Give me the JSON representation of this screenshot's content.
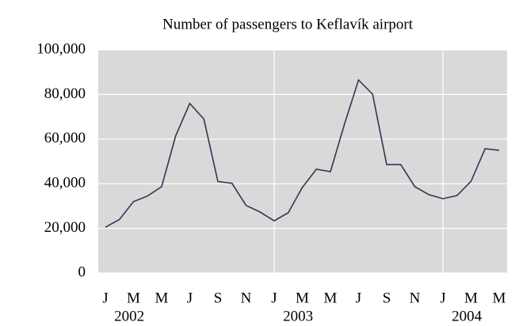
{
  "chart_data": {
    "type": "line",
    "title": "Number of passengers to Keflavík airport",
    "categories": [
      "J",
      null,
      "M",
      null,
      "M",
      null,
      "J",
      null,
      "S",
      null,
      "N",
      null,
      "J",
      null,
      "M",
      null,
      "M",
      null,
      "J",
      null,
      "S",
      null,
      "N",
      null,
      "J",
      null,
      "M",
      null,
      "M"
    ],
    "years": [
      "2002",
      "2003",
      "2004"
    ],
    "series": [
      {
        "color": "#2d3856",
        "values": [
          20500,
          24000,
          32000,
          34500,
          38700,
          61500,
          76000,
          69000,
          41000,
          40200,
          30300,
          27300,
          23400,
          27000,
          38300,
          46500,
          45400,
          66700,
          86500,
          80100,
          48600,
          48600,
          38700,
          35100,
          33300,
          34700,
          41100,
          55700,
          55000
        ]
      }
    ],
    "ylim": [
      0,
      100000
    ],
    "yticks": [
      0,
      {
        "value": 20000,
        "label": "20,000"
      },
      {
        "value": 40000,
        "label": "40,000"
      },
      {
        "value": 60000,
        "label": "60,000"
      },
      {
        "value": 80000,
        "label": "80,000"
      },
      {
        "value": 100000,
        "label": "100,000"
      }
    ],
    "grid": true
  }
}
